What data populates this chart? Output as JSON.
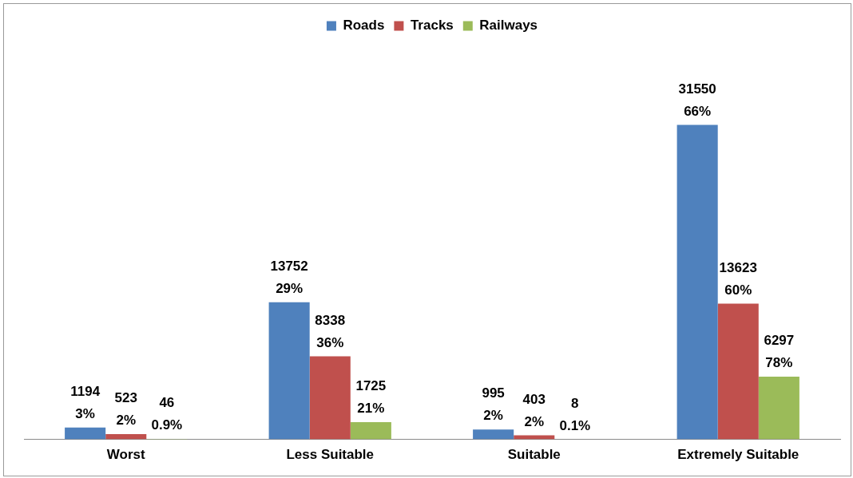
{
  "chart_data": {
    "type": "bar",
    "categories": [
      "Worst",
      "Less Suitable",
      "Suitable",
      "Extremely Suitable"
    ],
    "series": [
      {
        "name": "Roads",
        "color": "#4f81bd",
        "values": [
          1194,
          13752,
          995,
          31550
        ],
        "value_labels": [
          "1194\n3%",
          "13752\n29%",
          "995\n2%",
          "31550\n66%"
        ]
      },
      {
        "name": "Tracks",
        "color": "#c0504d",
        "values": [
          523,
          8338,
          403,
          13623
        ],
        "value_labels": [
          "523\n2%",
          "8338\n36%",
          "403\n2%",
          "13623\n60%"
        ]
      },
      {
        "name": "Railways",
        "color": "#9bbb59",
        "values": [
          46,
          1725,
          8,
          6297
        ],
        "value_labels": [
          "46\n0.9%",
          "1725\n21%",
          "8\n0.1%",
          "6297\n78%"
        ]
      }
    ],
    "legend": "top",
    "grid": false,
    "tick_labels": "x"
  }
}
